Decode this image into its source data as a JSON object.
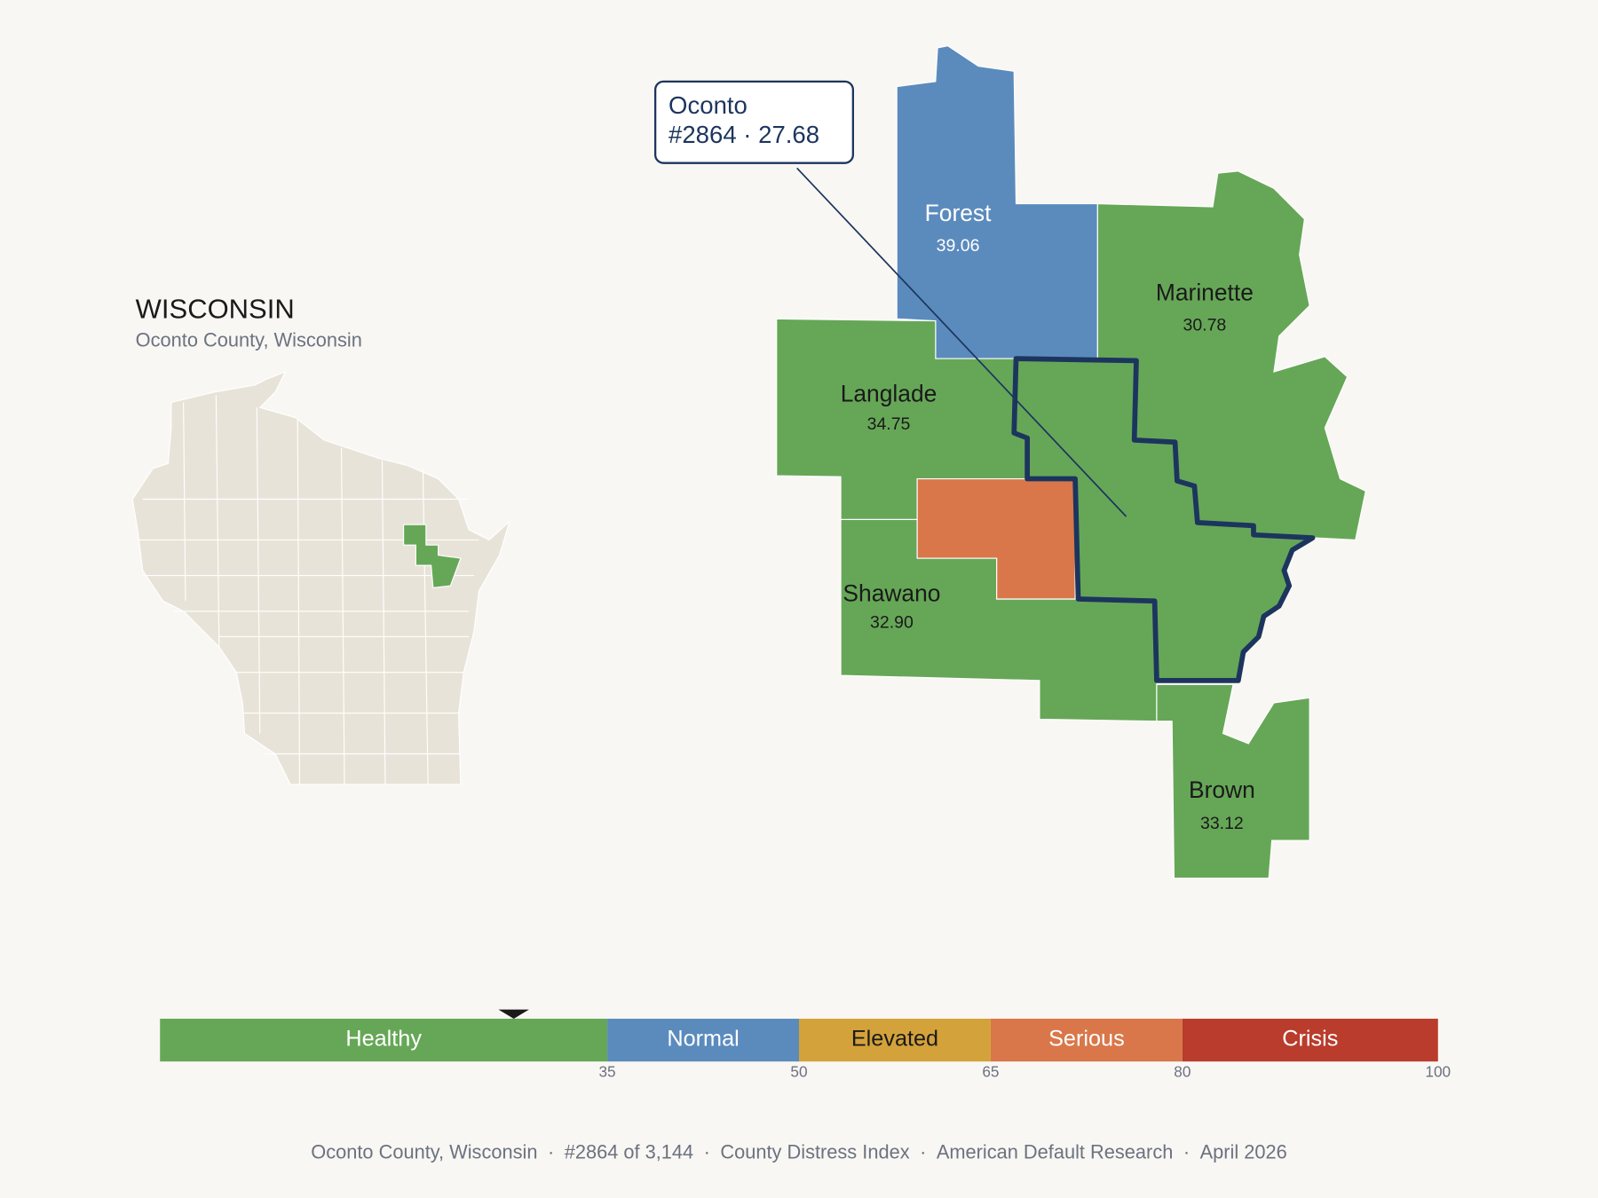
{
  "header": {
    "title": "WISCONSIN",
    "subtitle": "Oconto County, Wisconsin"
  },
  "callout": {
    "lines": [
      "Oconto",
      "#2864 · 27.68"
    ]
  },
  "counties": [
    {
      "name": "Forest",
      "value": "39.06"
    },
    {
      "name": "Marinette",
      "value": "30.78"
    },
    {
      "name": "Langlade",
      "value": "34.75"
    },
    {
      "name": "Shawano",
      "value": "32.90"
    },
    {
      "name": "Brown",
      "value": "33.12"
    }
  ],
  "legend": {
    "range": [
      0,
      100
    ],
    "ticks": [
      35,
      50,
      65,
      80,
      100
    ],
    "marker": 27.68,
    "bands": [
      {
        "label": "Healthy",
        "color": "#66a757"
      },
      {
        "label": "Normal",
        "color": "#5b8bbd"
      },
      {
        "label": "Elevated",
        "color": "#d4a23a"
      },
      {
        "label": "Serious",
        "color": "#d9774a"
      },
      {
        "label": "Crisis",
        "color": "#b93c2c"
      }
    ]
  },
  "footer": {
    "separator": "·",
    "items": [
      "Oconto County, Wisconsin",
      "#2864 of 3,144",
      "County Distress Index",
      "American Default Research",
      "April 2026"
    ]
  }
}
